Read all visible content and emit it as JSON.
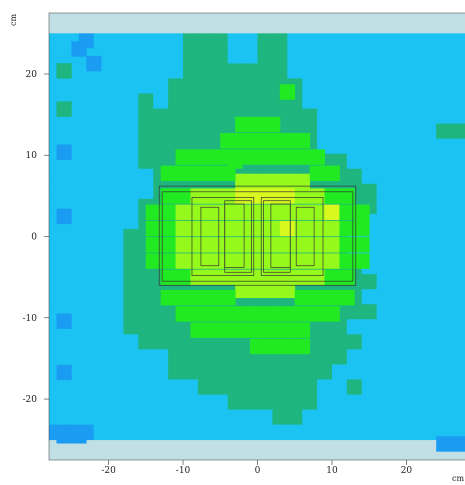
{
  "chart_data": {
    "type": "heatmap",
    "title": "",
    "xlabel": "cm",
    "ylabel": "cm",
    "xlim": [
      -28,
      28
    ],
    "ylim": [
      -27.5,
      27.5
    ],
    "x_ticks": [
      -20,
      -10,
      0,
      10,
      20
    ],
    "y_ticks": [
      -20,
      -10,
      0,
      10,
      20
    ],
    "x_tick_labels": [
      "-20",
      "-10",
      "0",
      "10",
      "20"
    ],
    "y_tick_labels": [
      "-20",
      "-10",
      "0",
      "10",
      "20"
    ],
    "grid": false,
    "legend": "none",
    "background_color": "#c0e0e6",
    "colors": {
      "1": "#1a9cf2",
      "2": "#1bc3f2",
      "3": "#1eb67e",
      "4": "#22ea22",
      "5": "#96f91c",
      "6": "#d8f81e"
    },
    "data_x_range": [
      -28,
      28
    ],
    "data_y_range": [
      -25,
      25
    ],
    "nx": 28,
    "ny": 27,
    "rows": [
      "2212222223332233222222222222",
      "2222222223332233222222222222",
      "2222222223333333222222222222",
      "2222222233333333322222222222",
      "2222223233333333322222222222",
      "2222223333333333332222222222",
      "2222223333333333332222222233",
      "2222223333333333332222222222",
      "2222223333334333333322222222",
      "2222222333333333333332222222",
      "2222222333333333333333222222",
      "2222223333333333333333222222",
      "2222223333333333333332222222",
      "2222233333333333333322222222",
      "2222233333333333333322222222",
      "2222233333333333333332222222",
      "2222233333333333333333222222",
      "2222233333333333333332222222",
      "2222233333333333333333222222",
      "2222233333333333333322222222",
      "2222223333333333333332222222",
      "2222222233333333333322222222",
      "2222222233333333333222222222",
      "2222222222333333332232222222",
      "2222222222223333332222222222",
      "2222222222222223322222222222",
      "1112222222222222222222222222"
    ],
    "overrides": [
      {
        "x": -24,
        "y": 23.1,
        "v": 1
      },
      {
        "x": -22,
        "y": 21.3,
        "v": 1
      },
      {
        "x": -26,
        "y": 20.4,
        "v": 3
      },
      {
        "x": -26,
        "y": 15.7,
        "v": 3
      },
      {
        "x": -26,
        "y": 10.4,
        "v": 1
      },
      {
        "x": -26,
        "y": 2.5,
        "v": 1
      },
      {
        "x": -26,
        "y": -10.4,
        "v": 1
      },
      {
        "x": -26,
        "y": -16.7,
        "v": 1
      },
      {
        "x": -26,
        "y": -24.5,
        "v": 1
      },
      {
        "x": -24,
        "y": -24.5,
        "v": 1
      },
      {
        "x": 27,
        "y": -25.5,
        "v": 1
      },
      {
        "x": 25,
        "y": -25.5,
        "v": 1
      }
    ],
    "hot_zone": [
      {
        "x": -2,
        "y": 6.8,
        "v": 5
      },
      {
        "x": 0,
        "y": 6.8,
        "v": 5
      },
      {
        "x": 2,
        "y": 6.8,
        "v": 5
      },
      {
        "x": 4,
        "y": 6.8,
        "v": 5
      },
      {
        "x": 6,
        "y": 6.8,
        "v": 5
      },
      {
        "x": -12,
        "y": 5.0,
        "v": 4
      },
      {
        "x": -10,
        "y": 5.0,
        "v": 4
      },
      {
        "x": -8,
        "y": 5.0,
        "v": 5
      },
      {
        "x": -6,
        "y": 5.0,
        "v": 5
      },
      {
        "x": -4,
        "y": 5.0,
        "v": 5
      },
      {
        "x": -2,
        "y": 5.0,
        "v": 6
      },
      {
        "x": 0,
        "y": 5.0,
        "v": 6
      },
      {
        "x": 2,
        "y": 5.0,
        "v": 6
      },
      {
        "x": 4,
        "y": 5.0,
        "v": 6
      },
      {
        "x": 6,
        "y": 5.0,
        "v": 5
      },
      {
        "x": 8,
        "y": 5.0,
        "v": 5
      },
      {
        "x": 10,
        "y": 5.0,
        "v": 4
      },
      {
        "x": 12,
        "y": 5.0,
        "v": 4
      },
      {
        "x": -14,
        "y": 3.0,
        "v": 4
      },
      {
        "x": -12,
        "y": 3.0,
        "v": 4
      },
      {
        "x": -10,
        "y": 3.0,
        "v": 5
      },
      {
        "x": -8,
        "y": 3.0,
        "v": 5
      },
      {
        "x": -6,
        "y": 3.0,
        "v": 5
      },
      {
        "x": -4,
        "y": 3.0,
        "v": 5
      },
      {
        "x": -2,
        "y": 3.0,
        "v": 5
      },
      {
        "x": 0,
        "y": 3.0,
        "v": 5
      },
      {
        "x": 2,
        "y": 3.0,
        "v": 5
      },
      {
        "x": 4,
        "y": 3.0,
        "v": 5
      },
      {
        "x": 6,
        "y": 3.0,
        "v": 5
      },
      {
        "x": 8,
        "y": 3.0,
        "v": 5
      },
      {
        "x": 10,
        "y": 3.0,
        "v": 6
      },
      {
        "x": 12,
        "y": 3.0,
        "v": 4
      },
      {
        "x": 14,
        "y": 3.0,
        "v": 4
      },
      {
        "x": -14,
        "y": 1.0,
        "v": 4
      },
      {
        "x": -12,
        "y": 1.0,
        "v": 4
      },
      {
        "x": -10,
        "y": 1.0,
        "v": 5
      },
      {
        "x": -8,
        "y": 1.0,
        "v": 5
      },
      {
        "x": -6,
        "y": 1.0,
        "v": 5
      },
      {
        "x": -4,
        "y": 1.0,
        "v": 5
      },
      {
        "x": -2,
        "y": 1.0,
        "v": 5
      },
      {
        "x": 0,
        "y": 1.0,
        "v": 5
      },
      {
        "x": 2,
        "y": 1.0,
        "v": 5
      },
      {
        "x": 4,
        "y": 1.0,
        "v": 6
      },
      {
        "x": 6,
        "y": 1.0,
        "v": 5
      },
      {
        "x": 8,
        "y": 1.0,
        "v": 5
      },
      {
        "x": 10,
        "y": 1.0,
        "v": 5
      },
      {
        "x": 12,
        "y": 1.0,
        "v": 4
      },
      {
        "x": 14,
        "y": 1.0,
        "v": 4
      },
      {
        "x": -14,
        "y": -1.0,
        "v": 4
      },
      {
        "x": -12,
        "y": -1.0,
        "v": 4
      },
      {
        "x": -10,
        "y": -1.0,
        "v": 5
      },
      {
        "x": -8,
        "y": -1.0,
        "v": 5
      },
      {
        "x": -6,
        "y": -1.0,
        "v": 5
      },
      {
        "x": -4,
        "y": -1.0,
        "v": 5
      },
      {
        "x": -2,
        "y": -1.0,
        "v": 5
      },
      {
        "x": 0,
        "y": -1.0,
        "v": 5
      },
      {
        "x": 2,
        "y": -1.0,
        "v": 5
      },
      {
        "x": 4,
        "y": -1.0,
        "v": 5
      },
      {
        "x": 6,
        "y": -1.0,
        "v": 5
      },
      {
        "x": 8,
        "y": -1.0,
        "v": 5
      },
      {
        "x": 10,
        "y": -1.0,
        "v": 5
      },
      {
        "x": 12,
        "y": -1.0,
        "v": 4
      },
      {
        "x": 14,
        "y": -1.0,
        "v": 4
      },
      {
        "x": -14,
        "y": -3.0,
        "v": 4
      },
      {
        "x": -12,
        "y": -3.0,
        "v": 4
      },
      {
        "x": -10,
        "y": -3.0,
        "v": 5
      },
      {
        "x": -8,
        "y": -3.0,
        "v": 5
      },
      {
        "x": -6,
        "y": -3.0,
        "v": 5
      },
      {
        "x": -4,
        "y": -3.0,
        "v": 5
      },
      {
        "x": -2,
        "y": -3.0,
        "v": 5
      },
      {
        "x": 0,
        "y": -3.0,
        "v": 5
      },
      {
        "x": 2,
        "y": -3.0,
        "v": 5
      },
      {
        "x": 4,
        "y": -3.0,
        "v": 5
      },
      {
        "x": 6,
        "y": -3.0,
        "v": 5
      },
      {
        "x": 8,
        "y": -3.0,
        "v": 5
      },
      {
        "x": 10,
        "y": -3.0,
        "v": 5
      },
      {
        "x": 12,
        "y": -3.0,
        "v": 4
      },
      {
        "x": 14,
        "y": -3.0,
        "v": 4
      },
      {
        "x": -12,
        "y": -5.0,
        "v": 4
      },
      {
        "x": -10,
        "y": -5.0,
        "v": 4
      },
      {
        "x": -8,
        "y": -5.0,
        "v": 5
      },
      {
        "x": -6,
        "y": -5.0,
        "v": 5
      },
      {
        "x": -4,
        "y": -5.0,
        "v": 5
      },
      {
        "x": -2,
        "y": -5.0,
        "v": 5
      },
      {
        "x": 0,
        "y": -5.0,
        "v": 5
      },
      {
        "x": 2,
        "y": -5.0,
        "v": 5
      },
      {
        "x": 4,
        "y": -5.0,
        "v": 5
      },
      {
        "x": 6,
        "y": -5.0,
        "v": 5
      },
      {
        "x": 8,
        "y": -5.0,
        "v": 5
      },
      {
        "x": 10,
        "y": -5.0,
        "v": 4
      },
      {
        "x": 12,
        "y": -5.0,
        "v": 4
      },
      {
        "x": -2,
        "y": -6.6,
        "v": 5
      },
      {
        "x": 0,
        "y": -6.6,
        "v": 5
      },
      {
        "x": 2,
        "y": -6.6,
        "v": 5
      },
      {
        "x": 4,
        "y": -6.6,
        "v": 5
      },
      {
        "x": -12,
        "y": 7.8,
        "v": 4
      },
      {
        "x": -10,
        "y": 7.8,
        "v": 4
      },
      {
        "x": -8,
        "y": 7.8,
        "v": 4
      },
      {
        "x": -6,
        "y": 7.8,
        "v": 4
      },
      {
        "x": -4,
        "y": 7.8,
        "v": 4
      },
      {
        "x": 8,
        "y": 7.8,
        "v": 4
      },
      {
        "x": 10,
        "y": 7.8,
        "v": 4
      },
      {
        "x": -10,
        "y": 9.8,
        "v": 4
      },
      {
        "x": -8,
        "y": 9.8,
        "v": 4
      },
      {
        "x": -6,
        "y": 9.8,
        "v": 4
      },
      {
        "x": -4,
        "y": 9.8,
        "v": 4
      },
      {
        "x": -2,
        "y": 9.8,
        "v": 4
      },
      {
        "x": 0,
        "y": 9.8,
        "v": 4
      },
      {
        "x": 2,
        "y": 9.8,
        "v": 4
      },
      {
        "x": 4,
        "y": 9.8,
        "v": 4
      },
      {
        "x": 6,
        "y": 9.8,
        "v": 4
      },
      {
        "x": 8,
        "y": 9.8,
        "v": 4
      },
      {
        "x": -4,
        "y": 11.8,
        "v": 4
      },
      {
        "x": -2,
        "y": 11.8,
        "v": 4
      },
      {
        "x": 0,
        "y": 11.8,
        "v": 4
      },
      {
        "x": 2,
        "y": 11.8,
        "v": 4
      },
      {
        "x": 4,
        "y": 11.8,
        "v": 4
      },
      {
        "x": 6,
        "y": 11.8,
        "v": 4
      },
      {
        "x": -2,
        "y": 13.8,
        "v": 4
      },
      {
        "x": 0,
        "y": 13.8,
        "v": 4
      },
      {
        "x": 2,
        "y": 13.8,
        "v": 4
      },
      {
        "x": 4,
        "y": 17.8,
        "v": 4
      },
      {
        "x": -12,
        "y": -7.5,
        "v": 4
      },
      {
        "x": -10,
        "y": -7.5,
        "v": 4
      },
      {
        "x": -8,
        "y": -7.5,
        "v": 4
      },
      {
        "x": -6,
        "y": -7.5,
        "v": 4
      },
      {
        "x": -4,
        "y": -7.5,
        "v": 4
      },
      {
        "x": 6,
        "y": -7.5,
        "v": 4
      },
      {
        "x": 8,
        "y": -7.5,
        "v": 4
      },
      {
        "x": 10,
        "y": -7.5,
        "v": 4
      },
      {
        "x": 12,
        "y": -7.5,
        "v": 4
      },
      {
        "x": -10,
        "y": -9.5,
        "v": 4
      },
      {
        "x": -8,
        "y": -9.5,
        "v": 4
      },
      {
        "x": -6,
        "y": -9.5,
        "v": 4
      },
      {
        "x": -4,
        "y": -9.5,
        "v": 4
      },
      {
        "x": -2,
        "y": -9.5,
        "v": 4
      },
      {
        "x": 0,
        "y": -9.5,
        "v": 4
      },
      {
        "x": 2,
        "y": -9.5,
        "v": 4
      },
      {
        "x": 4,
        "y": -9.5,
        "v": 4
      },
      {
        "x": 6,
        "y": -9.5,
        "v": 4
      },
      {
        "x": 8,
        "y": -9.5,
        "v": 4
      },
      {
        "x": 10,
        "y": -9.5,
        "v": 4
      },
      {
        "x": -8,
        "y": -11.5,
        "v": 4
      },
      {
        "x": -6,
        "y": -11.5,
        "v": 4
      },
      {
        "x": -4,
        "y": -11.5,
        "v": 4
      },
      {
        "x": -2,
        "y": -11.5,
        "v": 4
      },
      {
        "x": 0,
        "y": -11.5,
        "v": 4
      },
      {
        "x": 2,
        "y": -11.5,
        "v": 4
      },
      {
        "x": 4,
        "y": -11.5,
        "v": 4
      },
      {
        "x": 6,
        "y": -11.5,
        "v": 4
      },
      {
        "x": 0,
        "y": -13.5,
        "v": 4
      },
      {
        "x": 2,
        "y": -13.5,
        "v": 4
      },
      {
        "x": 4,
        "y": -13.5,
        "v": 4
      },
      {
        "x": 6,
        "y": -13.5,
        "v": 4
      },
      {
        "x": 14,
        "y": 2.5,
        "v": 4
      }
    ],
    "outlines": [
      {
        "x0": -13.2,
        "x1": 13.2,
        "y0": -6.0,
        "y1": 6.2
      },
      {
        "x0": -12.8,
        "x1": 12.8,
        "y0": -5.5,
        "y1": 5.5
      },
      {
        "x0": -8.8,
        "x1": -0.5,
        "y0": -4.8,
        "y1": 4.8
      },
      {
        "x0": 0.5,
        "x1": 8.8,
        "y0": -4.8,
        "y1": 4.8
      },
      {
        "x0": -7.6,
        "x1": -5.2,
        "y0": -3.6,
        "y1": 3.6
      },
      {
        "x0": -4.4,
        "x1": -0.8,
        "y0": -4.4,
        "y1": 4.4
      },
      {
        "x0": 0.8,
        "x1": 4.4,
        "y0": -4.4,
        "y1": 4.4
      },
      {
        "x0": 5.2,
        "x1": 7.6,
        "y0": -3.6,
        "y1": 3.6
      },
      {
        "x0": -4.4,
        "x1": -1.8,
        "y0": -3.8,
        "y1": 4.0
      },
      {
        "x0": 1.8,
        "x1": 4.4,
        "y0": -3.8,
        "y1": 4.0
      }
    ]
  }
}
